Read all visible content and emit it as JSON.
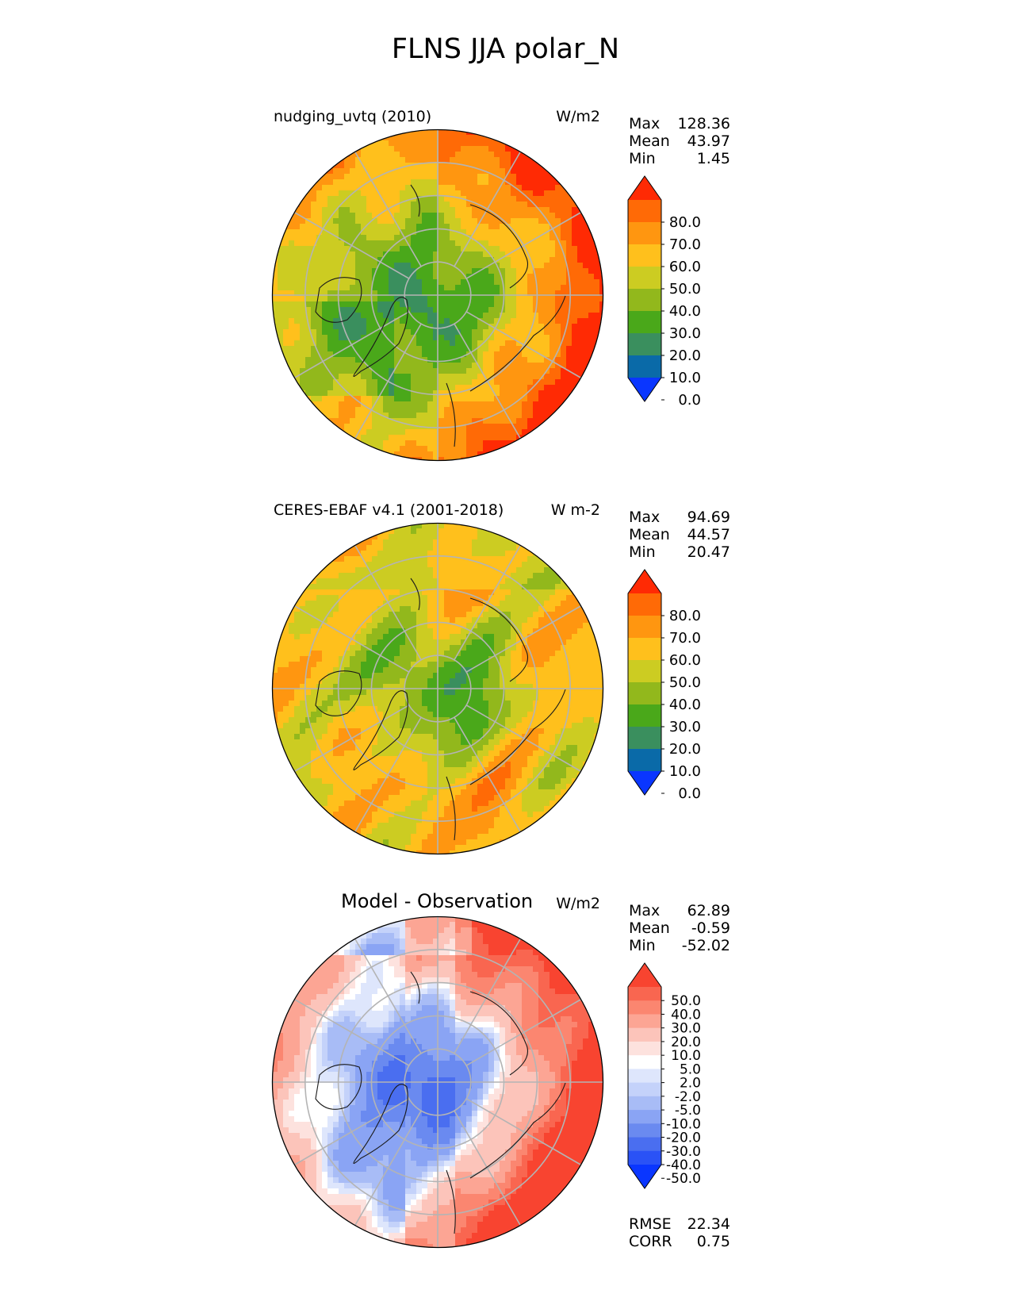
{
  "figure": {
    "title": "FLNS JJA polar_N"
  },
  "chart_data": [
    {
      "type": "heatmap",
      "projection": "north polar stereographic",
      "title": "nudging_uvtq (2010)",
      "units": "W/m2",
      "stats": [
        {
          "label": "Max",
          "value": "128.36"
        },
        {
          "label": "Mean",
          "value": "43.97"
        },
        {
          "label": "Min",
          "value": "1.45"
        }
      ],
      "colorbar": {
        "extend": "both",
        "tick_labels": [
          "80.0",
          "70.0",
          "60.0",
          "50.0",
          "40.0",
          "30.0",
          "20.0",
          "10.0",
          "0.0"
        ],
        "colors": [
          "#0a36ff",
          "#0a6aa8",
          "#3a8f5e",
          "#4aa81a",
          "#92b81c",
          "#cccc22",
          "#ffc01c",
          "#ff9610",
          "#ff6a06",
          "#ff2a04"
        ]
      }
    },
    {
      "type": "heatmap",
      "projection": "north polar stereographic",
      "title": "CERES-EBAF v4.1 (2001-2018)",
      "units": "W m-2",
      "stats": [
        {
          "label": "Max",
          "value": "94.69"
        },
        {
          "label": "Mean",
          "value": "44.57"
        },
        {
          "label": "Min",
          "value": "20.47"
        }
      ],
      "colorbar": {
        "extend": "both",
        "tick_labels": [
          "80.0",
          "70.0",
          "60.0",
          "50.0",
          "40.0",
          "30.0",
          "20.0",
          "10.0",
          "0.0"
        ],
        "colors": [
          "#0a36ff",
          "#0a6aa8",
          "#3a8f5e",
          "#4aa81a",
          "#92b81c",
          "#cccc22",
          "#ffc01c",
          "#ff9610",
          "#ff6a06",
          "#ff2a04"
        ]
      }
    },
    {
      "type": "heatmap",
      "projection": "north polar stereographic",
      "title": "Model - Observation",
      "units": "W/m2",
      "stats": [
        {
          "label": "Max",
          "value": "62.89"
        },
        {
          "label": "Mean",
          "value": "-0.59"
        },
        {
          "label": "Min",
          "value": "-52.02"
        }
      ],
      "colorbar": {
        "extend": "both",
        "tick_labels": [
          "50.0",
          "40.0",
          "30.0",
          "20.0",
          "10.0",
          "5.0",
          "2.0",
          "-2.0",
          "-5.0",
          "-10.0",
          "-20.0",
          "-30.0",
          "-40.0",
          "-50.0"
        ],
        "colors": [
          "#0a36ff",
          "#2a52f6",
          "#4a6ef0",
          "#6a8af0",
          "#8aa4f4",
          "#a8bcf6",
          "#c4d2fa",
          "#dee6fc",
          "#ffffff",
          "#fde2de",
          "#fcc4ba",
          "#fca594",
          "#fb8670",
          "#f96650",
          "#f84430"
        ]
      },
      "metrics": [
        {
          "label": "RMSE",
          "value": "22.34"
        },
        {
          "label": "CORR",
          "value": "0.75"
        }
      ]
    }
  ]
}
